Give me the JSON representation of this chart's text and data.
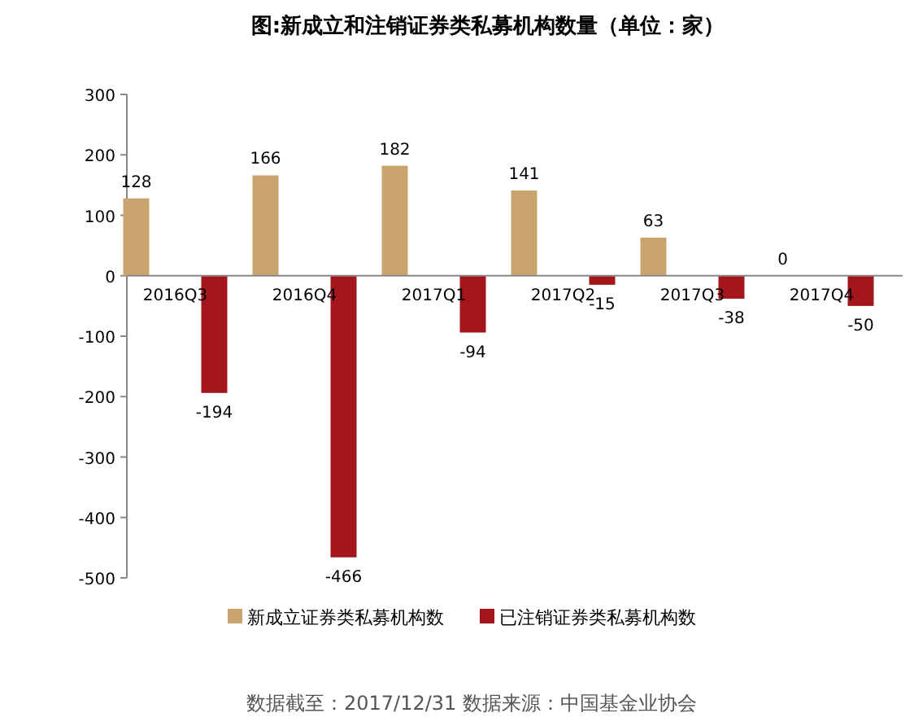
{
  "chart_data": {
    "type": "bar",
    "title": "图:新成立和注销证券类私募机构数量（单位：家）",
    "categories": [
      "2016Q3",
      "2016Q4",
      "2017Q1",
      "2017Q2",
      "2017Q3",
      "2017Q4"
    ],
    "series": [
      {
        "name": "新成立证券类私募机构数",
        "color": "#c9a46e",
        "values": [
          128,
          166,
          182,
          141,
          63,
          0
        ]
      },
      {
        "name": "已注销证券类私募机构数",
        "color": "#a3171c",
        "values": [
          -194,
          -466,
          -94,
          -15,
          -38,
          -50
        ]
      }
    ],
    "ylim": [
      -500,
      300
    ],
    "yticks": [
      -500,
      -400,
      -300,
      -200,
      -100,
      0,
      100,
      200,
      300
    ],
    "data_labels": true,
    "grid": false,
    "legend": "bottom",
    "annotations": [
      "数据截至：2017/12/31    数据来源：中国基金业协会"
    ]
  }
}
